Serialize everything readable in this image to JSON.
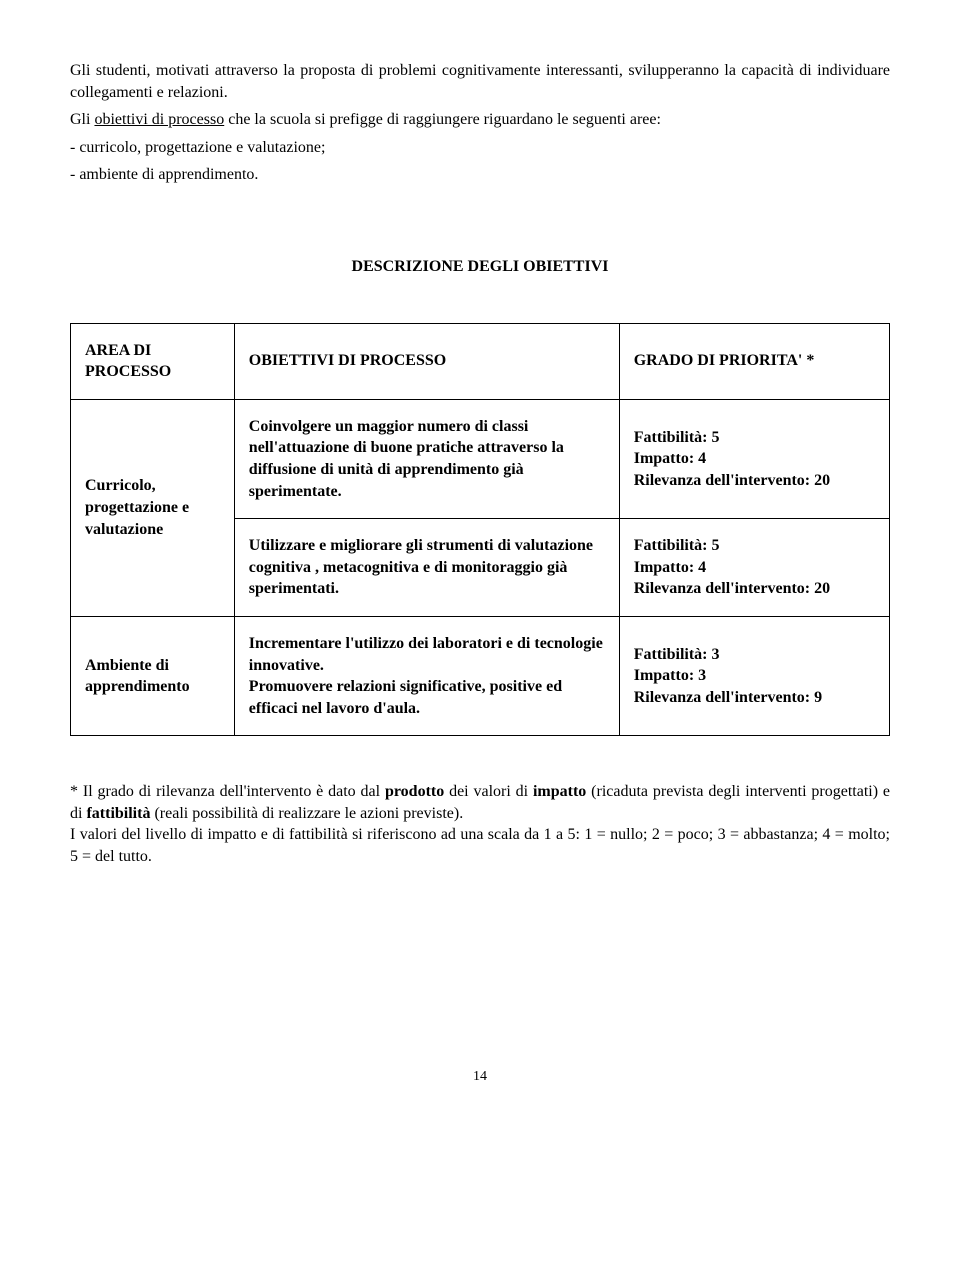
{
  "intro": {
    "p1": "Gli studenti, motivati attraverso la proposta di problemi cognitivamente interessanti, svilupperanno la capacità di individuare collegamenti e relazioni.",
    "p2_prefix": "Gli ",
    "p2_underline": "obiettivi di processo",
    "p2_rest": " che la scuola si prefigge di raggiungere riguardano le seguenti aree:",
    "li1": "- curricolo, progettazione e valutazione;",
    "li2": "- ambiente di apprendimento."
  },
  "section_title": "DESCRIZIONE DEGLI OBIETTIVI",
  "table": {
    "headers": {
      "area": "AREA DI PROCESSO",
      "obiettivi": "OBIETTIVI DI PROCESSO",
      "priorita": "GRADO DI PRIORITA' *"
    },
    "rows": [
      {
        "area": "Curricolo, progettazione e valutazione",
        "obiettivo": "Coinvolgere un maggior numero di classi nell'attuazione di buone pratiche attraverso la diffusione di unità di apprendimento già sperimentate.",
        "fattibilita": "Fattibilità: 5",
        "impatto": "Impatto: 4",
        "rilevanza": "Rilevanza dell'intervento: 20"
      },
      {
        "area": "",
        "obiettivo": "Utilizzare e migliorare gli strumenti di valutazione cognitiva , metacognitiva e di monitoraggio già sperimentati.",
        "fattibilita": "Fattibilità: 5",
        "impatto": "Impatto: 4",
        "rilevanza": "Rilevanza dell'intervento: 20"
      },
      {
        "area": "Ambiente di apprendimento",
        "obiettivo": "Incrementare l'utilizzo dei laboratori e di tecnologie innovative.\nPromuovere relazioni significative, positive ed efficaci nel lavoro d'aula.",
        "fattibilita": "Fattibilità: 3",
        "impatto": "Impatto: 3",
        "rilevanza": "Rilevanza dell'intervento: 9"
      }
    ]
  },
  "footnote": {
    "p1_a": "* Il grado di rilevanza dell'intervento è dato dal ",
    "p1_b": "prodotto",
    "p1_c": " dei valori di ",
    "p1_d": "impatto",
    "p1_e": " (ricaduta prevista degli interventi progettati) e di ",
    "p1_f": "fattibilità",
    "p1_g": " (reali possibilità di realizzare le azioni previste).",
    "p2": "I valori del livello di impatto e di fattibilità si riferiscono ad una scala da 1 a 5: 1 = nullo; 2 = poco; 3 = abbastanza; 4 = molto; 5 = del tutto."
  },
  "page_number": "14"
}
